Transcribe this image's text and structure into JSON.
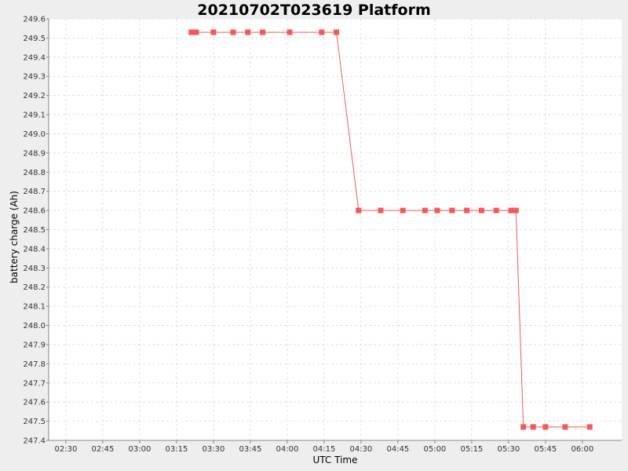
{
  "chart_data": {
    "type": "line",
    "title": "20210702T023619 Platform",
    "xlabel": "UTC Time",
    "ylabel": "battery charge (Ah)",
    "grid": true,
    "legend": "none",
    "colors": {
      "series": "#f25a5a",
      "background": "#eeeeee",
      "plot_background": "#ffffff",
      "grid": "#d8d8d8"
    },
    "xlim": [
      "02:23",
      "06:16"
    ],
    "ylim": [
      247.4,
      249.6
    ],
    "x_ticks": [
      "02:30",
      "02:45",
      "03:00",
      "03:15",
      "03:30",
      "03:45",
      "04:00",
      "04:15",
      "04:30",
      "04:45",
      "05:00",
      "05:15",
      "05:30",
      "05:45",
      "06:00"
    ],
    "y_ticks": [
      "249.6",
      "249.5",
      "249.4",
      "249.3",
      "249.2",
      "249.1",
      "249.0",
      "248.9",
      "248.8",
      "248.7",
      "248.6",
      "248.5",
      "248.4",
      "248.3",
      "248.2",
      "248.1",
      "248.0",
      "247.9",
      "247.8",
      "247.7",
      "247.6",
      "247.5",
      "247.4"
    ],
    "series": [
      {
        "x": [
          "03:21",
          "03:22",
          "03:23",
          "03:30",
          "03:38",
          "03:44",
          "03:50",
          "04:01",
          "04:14",
          "04:20",
          "04:29",
          "04:38",
          "04:47",
          "04:56",
          "05:01",
          "05:07",
          "05:13",
          "05:19",
          "05:25",
          "05:31",
          "05:33",
          "05:36",
          "05:40",
          "05:45",
          "05:53",
          "06:03"
        ],
        "y": [
          249.53,
          249.53,
          249.53,
          249.53,
          249.53,
          249.53,
          249.53,
          249.53,
          249.53,
          249.53,
          248.6,
          248.6,
          248.6,
          248.6,
          248.6,
          248.6,
          248.6,
          248.6,
          248.6,
          248.6,
          248.6,
          247.47,
          247.47,
          247.47,
          247.47,
          247.47
        ]
      }
    ]
  }
}
